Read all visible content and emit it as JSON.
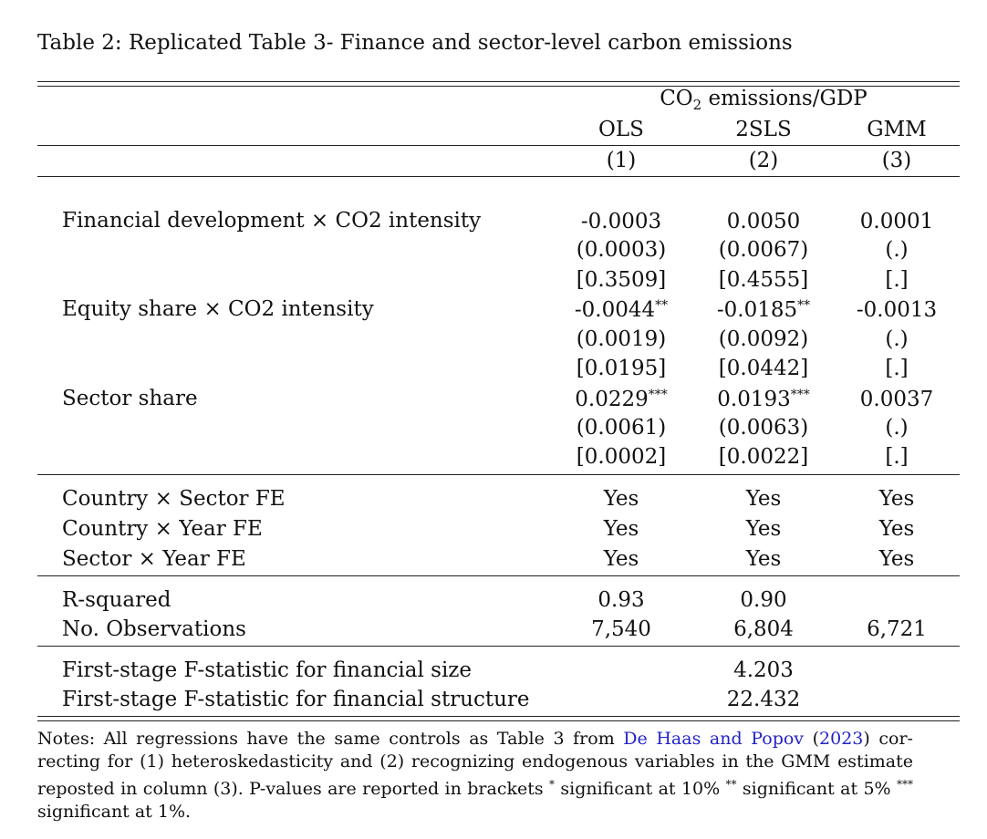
{
  "caption": "Table 2: Replicated Table 3- Finance and sector-level carbon emissions",
  "header": {
    "group_prefix": "CO",
    "group_sub": "2",
    "group_suffix": " emissions/GDP",
    "methods": [
      "OLS",
      "2SLS",
      "GMM"
    ],
    "numbers": [
      "(1)",
      "(2)",
      "(3)"
    ]
  },
  "rows": {
    "fin_dev": {
      "label": "Financial development × CO2 intensity",
      "coef": [
        "-0.0003",
        "0.0050",
        "0.0001"
      ],
      "coef_stars": [
        "",
        "",
        ""
      ],
      "se": [
        "(0.0003)",
        "(0.0067)",
        "(.)"
      ],
      "p": [
        "[0.3509]",
        "[0.4555]",
        "[.]"
      ]
    },
    "equity": {
      "label": "Equity share × CO2 intensity",
      "coef": [
        "-0.0044",
        "-0.0185",
        "-0.0013"
      ],
      "coef_stars": [
        "**",
        "**",
        ""
      ],
      "se": [
        "(0.0019)",
        "(0.0092)",
        "(.)"
      ],
      "p": [
        "[0.0195]",
        "[0.0442]",
        "[.]"
      ]
    },
    "sector": {
      "label": "Sector share",
      "coef": [
        "0.0229",
        "0.0193",
        "0.0037"
      ],
      "coef_stars": [
        "***",
        "***",
        ""
      ],
      "se": [
        "(0.0061)",
        "(0.0063)",
        "(.)"
      ],
      "p": [
        "[0.0002]",
        "[0.0022]",
        "[.]"
      ]
    }
  },
  "fixed_effects": [
    {
      "label": "Country × Sector FE",
      "values": [
        "Yes",
        "Yes",
        "Yes"
      ]
    },
    {
      "label": "Country × Year FE",
      "values": [
        "Yes",
        "Yes",
        "Yes"
      ]
    },
    {
      "label": "Sector × Year FE",
      "values": [
        "Yes",
        "Yes",
        "Yes"
      ]
    }
  ],
  "stats": {
    "r2": {
      "label": "R-squared",
      "values": [
        "0.93",
        "0.90",
        ""
      ]
    },
    "obs": {
      "label": "No. Observations",
      "values": [
        "7,540",
        "6,804",
        "6,721"
      ]
    }
  },
  "first_stage": [
    {
      "label": "First-stage F-statistic for financial size",
      "value": "4.203"
    },
    {
      "label": "First-stage F-statistic for financial structure",
      "value": "22.432"
    }
  ],
  "notes": {
    "part1": "Notes: All regressions have the same controls as Table 3 from ",
    "cite_authors": "De Haas and Popov",
    "paren_open": " (",
    "cite_year": "2023",
    "part2": ") cor-recting for (1) heteroskedasticity and (2) recognizing endogenous variables in the GMM estimate reposted in column (3). P-values are reported in brackets ",
    "star1": "*",
    "text1": " significant at 10% ",
    "star2": "**",
    "text2": " significant at 5% ",
    "star3": "***",
    "text3": " significant at 1%."
  }
}
